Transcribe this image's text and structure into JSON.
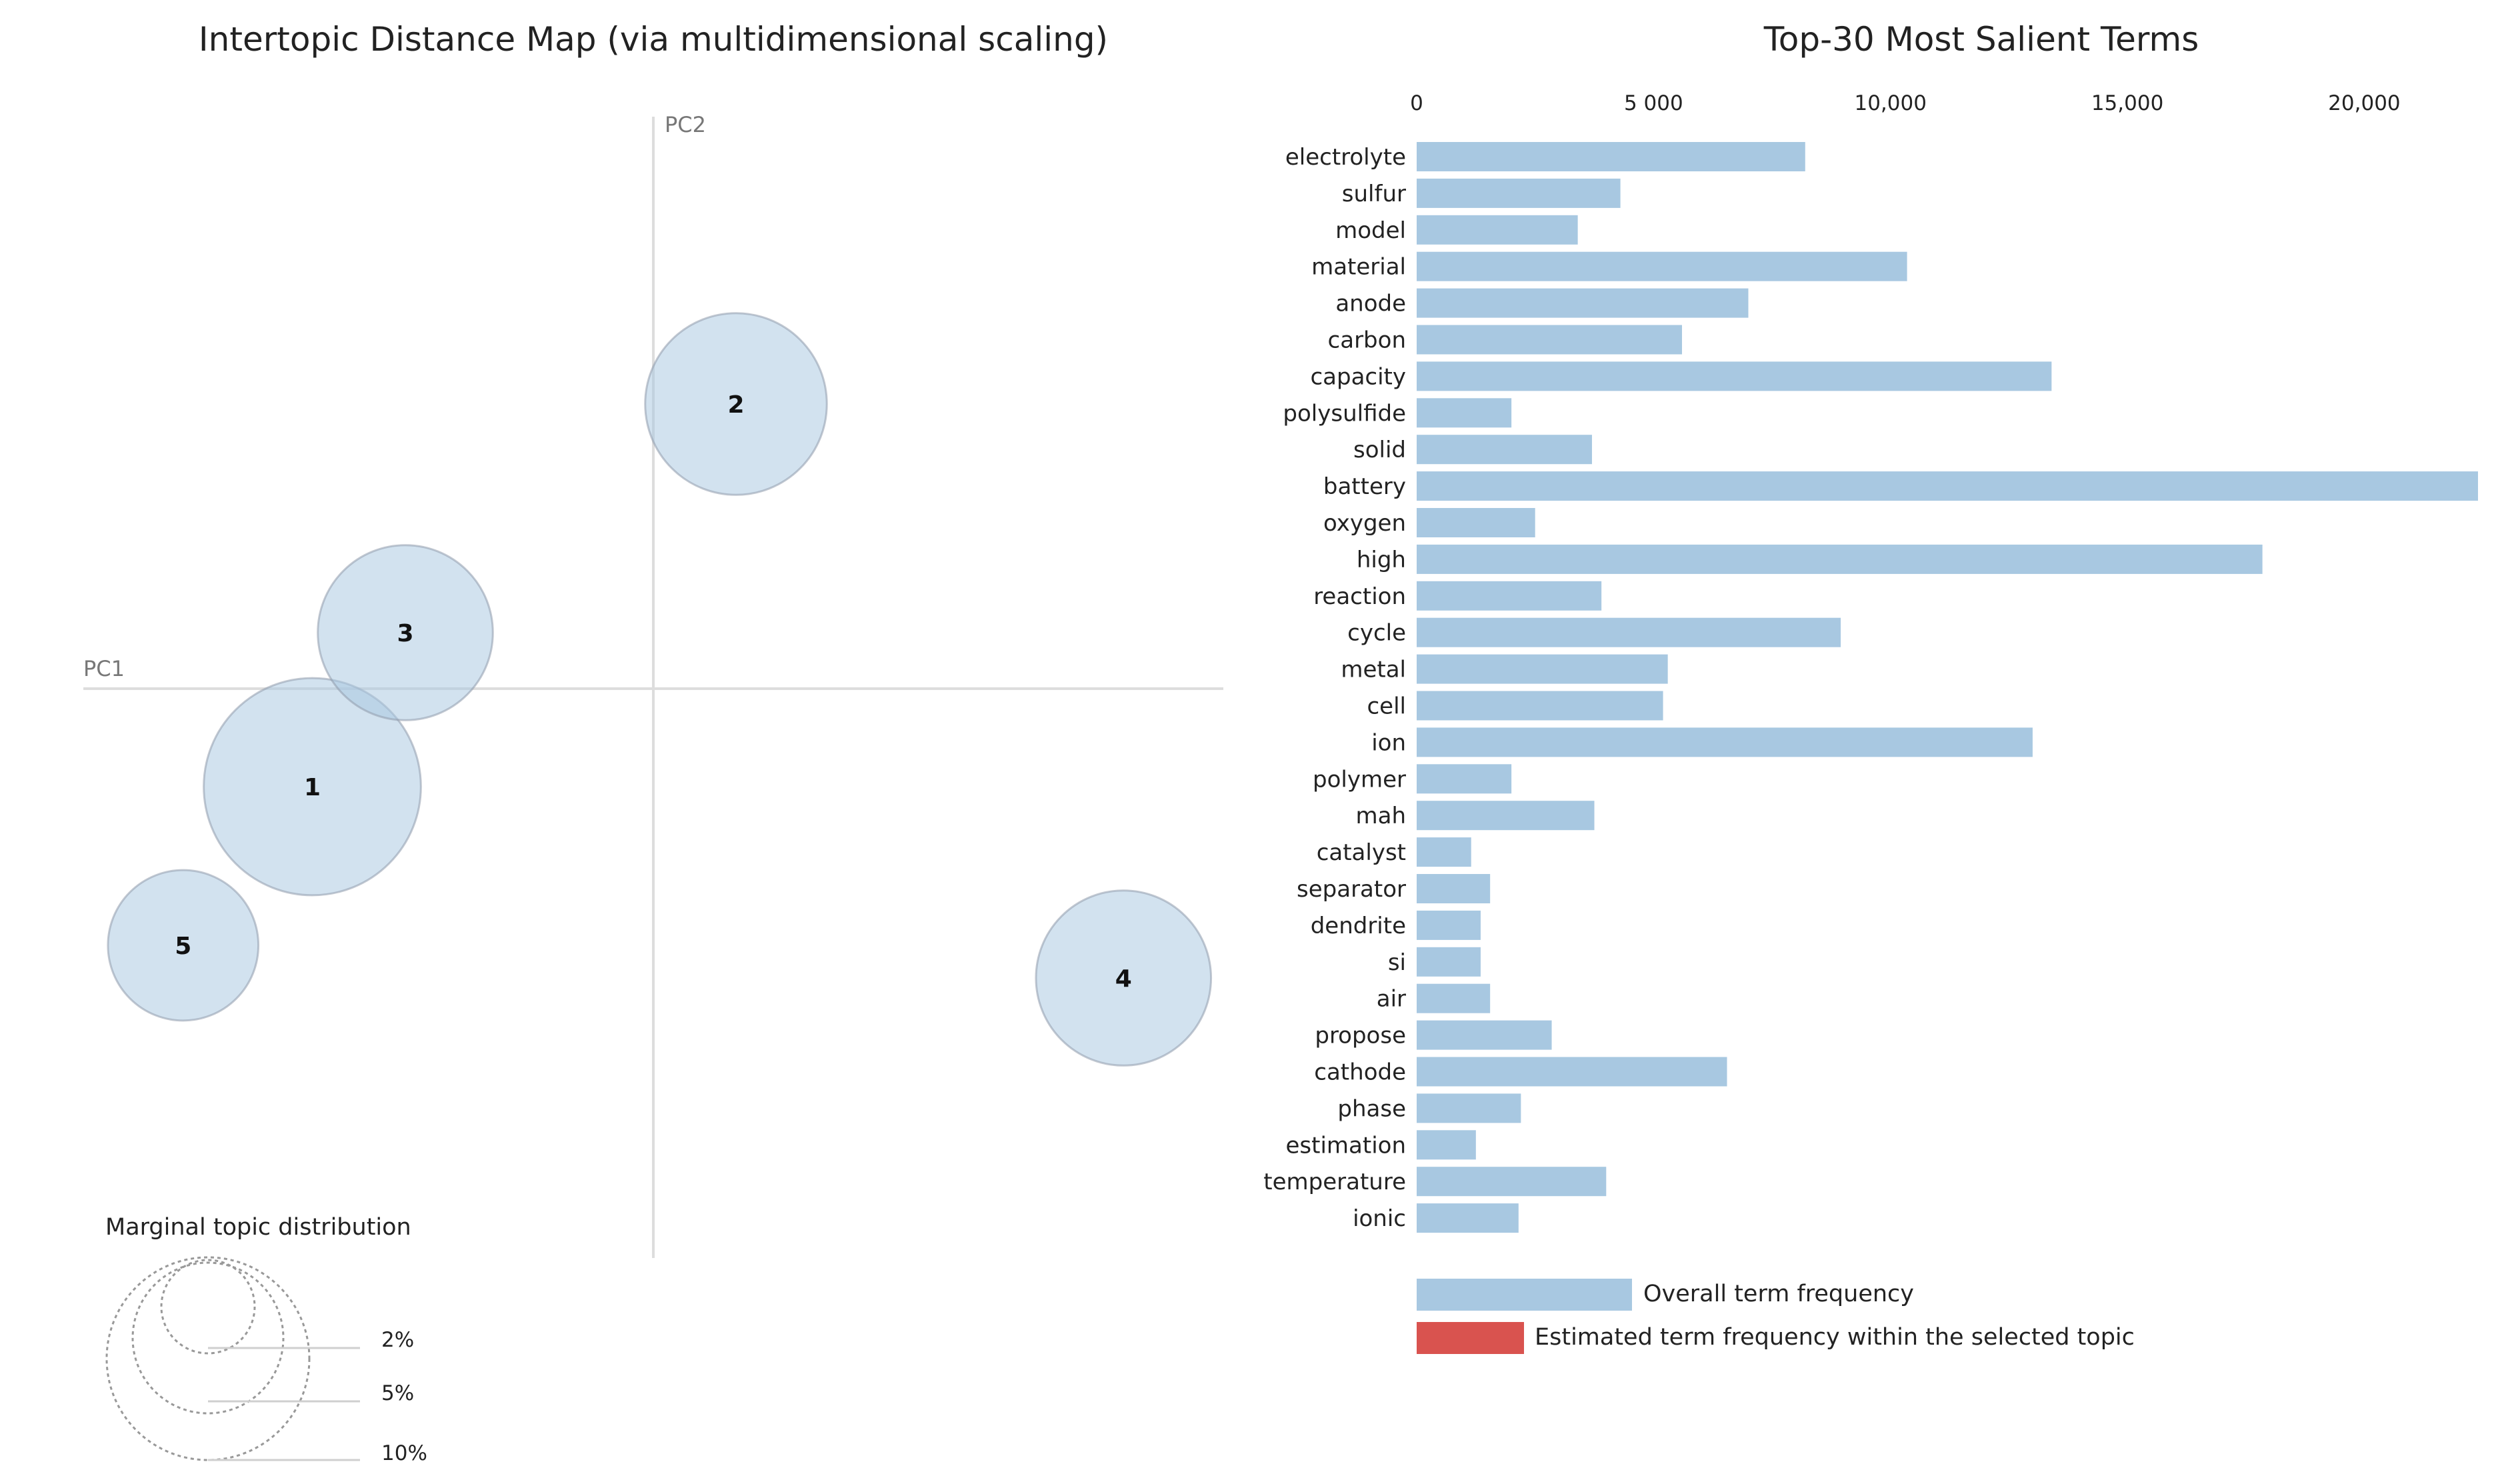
{
  "left_panel": {
    "title": "Intertopic Distance Map (via multidimensional scaling)",
    "pc1_label": "PC1",
    "pc2_label": "PC2",
    "marginal": {
      "title": "Marginal topic distribution",
      "levels": [
        "2%",
        "5%",
        "10%"
      ]
    }
  },
  "right_panel": {
    "title": "Top-30 Most Salient Terms",
    "legend": {
      "overall": "Overall term frequency",
      "within_topic": "Estimated term frequency within the selected topic"
    }
  },
  "colors": {
    "bar": "#a8c8e1",
    "topic_circle": "#a8c8e1",
    "selected_topic": "#d9534f"
  },
  "chart_data": [
    {
      "type": "scatter",
      "title": "Intertopic Distance Map (via multidimensional scaling)",
      "xlabel": "PC1",
      "ylabel": "PC2",
      "xlim": [
        -1,
        1
      ],
      "ylim": [
        -1,
        1
      ],
      "points": [
        {
          "label": "1",
          "x": -0.66,
          "y": -0.21,
          "marginal_pct": 10
        },
        {
          "label": "2",
          "x": 0.16,
          "y": 0.61,
          "marginal_pct": 7
        },
        {
          "label": "3",
          "x": -0.48,
          "y": 0.12,
          "marginal_pct": 6.5
        },
        {
          "label": "4",
          "x": 0.91,
          "y": -0.62,
          "marginal_pct": 6.5
        },
        {
          "label": "5",
          "x": -0.91,
          "y": -0.55,
          "marginal_pct": 4.8
        }
      ]
    },
    {
      "type": "bar",
      "orientation": "horizontal",
      "title": "Top-30 Most Salient Terms",
      "xlim": [
        0,
        22500
      ],
      "ticks": [
        {
          "value": 0,
          "label": "0"
        },
        {
          "value": 5000,
          "label": "5 000"
        },
        {
          "value": 10000,
          "label": "10,000"
        },
        {
          "value": 15000,
          "label": "15,000"
        },
        {
          "value": 20000,
          "label": "20,000"
        }
      ],
      "categories": [
        "electrolyte",
        "sulfur",
        "model",
        "material",
        "anode",
        "carbon",
        "capacity",
        "polysulfide",
        "solid",
        "battery",
        "oxygen",
        "high",
        "reaction",
        "cycle",
        "metal",
        "cell",
        "ion",
        "polymer",
        "mah",
        "catalyst",
        "separator",
        "dendrite",
        "si",
        "air",
        "propose",
        "cathode",
        "phase",
        "estimation",
        "temperature",
        "ionic"
      ],
      "values": [
        8200,
        4300,
        3400,
        10350,
        7000,
        5600,
        13400,
        2000,
        3700,
        22400,
        2500,
        17850,
        3900,
        8950,
        5300,
        5200,
        13000,
        2000,
        3750,
        1150,
        1550,
        1350,
        1350,
        1550,
        2850,
        6550,
        2200,
        1250,
        4000,
        2150
      ]
    }
  ]
}
